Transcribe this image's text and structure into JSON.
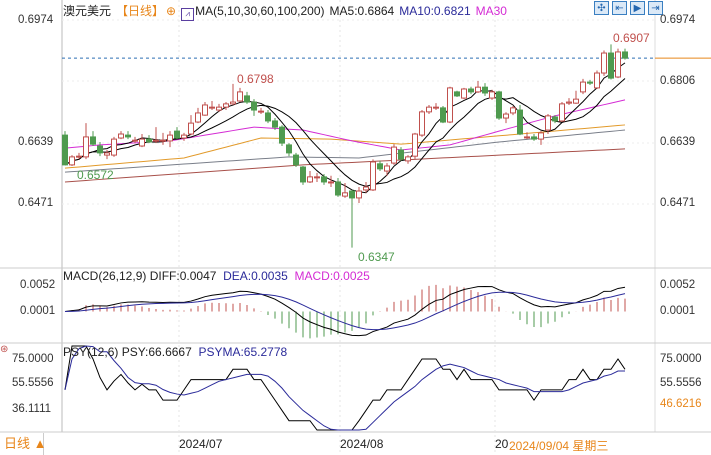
{
  "header": {
    "symbol": "澳元美元",
    "period": "【日线】",
    "indicator_icon": "chart-icon",
    "ma_label": "MA(5,10,30,60,100,200)",
    "ma5": "MA5:0.6864",
    "ma10": "MA10:0.6821",
    "ma30": "MA30"
  },
  "toolbar": [
    "crosshair-icon",
    "zoom-in-icon",
    "step-forward-icon",
    "jump-to-end-icon"
  ],
  "colors": {
    "up": "#c0504d",
    "down": "#4f9a4f",
    "ma5": "#000000",
    "ma10": "#000000",
    "ma30": "#d42bd4",
    "ma60": "#e29a2a",
    "ma100": "#7a7f8a",
    "ma200": "#a8504a",
    "accent": "#e8861a",
    "last_price_line": "#2c6fb3"
  },
  "chart_data": [
    {
      "type": "candlestick",
      "title": "澳元美元",
      "y_ticks": [
        "0.6974",
        "0.6806",
        "0.6639",
        "0.6471"
      ],
      "ylim": [
        0.6471,
        0.6974
      ],
      "x_ticks": [
        "2024/07",
        "2024/08",
        "20"
      ],
      "annotations": {
        "high": "0.6798",
        "period_high": "0.6907",
        "low": "0.6347",
        "left_low": "0.6572"
      },
      "candles_ohlc_note": "[open, close, high, low]",
      "candles": [
        [
          0.6657,
          0.6575,
          0.6668,
          0.6575
        ],
        [
          0.6575,
          0.6597,
          0.6602,
          0.6572
        ],
        [
          0.6597,
          0.6599,
          0.6608,
          0.6591
        ],
        [
          0.6597,
          0.6652,
          0.669,
          0.6591
        ],
        [
          0.6652,
          0.6632,
          0.6668,
          0.6627
        ],
        [
          0.6627,
          0.6608,
          0.6638,
          0.6599
        ],
        [
          0.6602,
          0.6608,
          0.6616,
          0.6591
        ],
        [
          0.6602,
          0.6646,
          0.6652,
          0.6597
        ],
        [
          0.6649,
          0.666,
          0.6668,
          0.6646
        ],
        [
          0.6657,
          0.6652,
          0.6668,
          0.6646
        ],
        [
          0.6641,
          0.6643,
          0.6652,
          0.6635
        ],
        [
          0.6627,
          0.6646,
          0.666,
          0.6624
        ],
        [
          0.6646,
          0.6638,
          0.6657,
          0.6635
        ],
        [
          0.6641,
          0.6643,
          0.6679,
          0.6635
        ],
        [
          0.6641,
          0.6643,
          0.6663,
          0.663
        ],
        [
          0.6641,
          0.6657,
          0.6668,
          0.6624
        ],
        [
          0.6668,
          0.6649,
          0.6679,
          0.6646
        ],
        [
          0.6649,
          0.6657,
          0.6663,
          0.6641
        ],
        [
          0.666,
          0.669,
          0.6712,
          0.6657
        ],
        [
          0.6693,
          0.6718,
          0.6732,
          0.669
        ],
        [
          0.6712,
          0.674,
          0.6748,
          0.671
        ],
        [
          0.6732,
          0.6734,
          0.6751,
          0.6726
        ],
        [
          0.6726,
          0.6734,
          0.6743,
          0.6721
        ],
        [
          0.6734,
          0.6743,
          0.6748,
          0.6726
        ],
        [
          0.6743,
          0.6748,
          0.6798,
          0.674
        ],
        [
          0.6751,
          0.6776,
          0.6787,
          0.6748
        ],
        [
          0.6765,
          0.6748,
          0.6776,
          0.6743
        ],
        [
          0.6748,
          0.6726,
          0.6756,
          0.671
        ],
        [
          0.6723,
          0.6723,
          0.6732,
          0.6715
        ],
        [
          0.6718,
          0.6696,
          0.6726,
          0.669
        ],
        [
          0.6696,
          0.6679,
          0.6704,
          0.6671
        ],
        [
          0.6679,
          0.6635,
          0.6684,
          0.6627
        ],
        [
          0.663,
          0.6608,
          0.6635,
          0.6599
        ],
        [
          0.6602,
          0.6575,
          0.6608,
          0.6569
        ],
        [
          0.6569,
          0.6528,
          0.6572,
          0.652
        ],
        [
          0.6528,
          0.6542,
          0.6558,
          0.6525
        ],
        [
          0.6542,
          0.6542,
          0.6553,
          0.6528
        ],
        [
          0.6542,
          0.6528,
          0.655,
          0.652
        ],
        [
          0.6528,
          0.6528,
          0.6545,
          0.6514
        ],
        [
          0.6528,
          0.6492,
          0.6539,
          0.6487
        ],
        [
          0.6489,
          0.6498,
          0.6525,
          0.6484
        ],
        [
          0.6503,
          0.6484,
          0.6506,
          0.6347
        ],
        [
          0.6484,
          0.6503,
          0.6514,
          0.647
        ],
        [
          0.6506,
          0.6514,
          0.6528,
          0.6498
        ],
        [
          0.6506,
          0.6583,
          0.659,
          0.6503
        ],
        [
          0.6578,
          0.6564,
          0.6586,
          0.6558
        ],
        [
          0.6558,
          0.6572,
          0.658,
          0.6545
        ],
        [
          0.658,
          0.6624,
          0.6632,
          0.6575
        ],
        [
          0.6616,
          0.6591,
          0.6624,
          0.6586
        ],
        [
          0.6586,
          0.6597,
          0.6602,
          0.6578
        ],
        [
          0.6599,
          0.666,
          0.6663,
          0.6591
        ],
        [
          0.6657,
          0.6721,
          0.6726,
          0.6652
        ],
        [
          0.6721,
          0.6734,
          0.674,
          0.6715
        ],
        [
          0.6734,
          0.6734,
          0.6745,
          0.6726
        ],
        [
          0.6732,
          0.6693,
          0.6737,
          0.669
        ],
        [
          0.6693,
          0.6787,
          0.679,
          0.669
        ],
        [
          0.6776,
          0.6765,
          0.6779,
          0.6762
        ],
        [
          0.6759,
          0.6784,
          0.6787,
          0.6756
        ],
        [
          0.6784,
          0.6776,
          0.679,
          0.677
        ],
        [
          0.6776,
          0.6789,
          0.6806,
          0.6773
        ],
        [
          0.6789,
          0.6773,
          0.68,
          0.6765
        ],
        [
          0.6759,
          0.6776,
          0.6782,
          0.6754
        ],
        [
          0.6776,
          0.6704,
          0.6779,
          0.6699
        ],
        [
          0.6704,
          0.6715,
          0.672,
          0.669
        ],
        [
          0.6718,
          0.6732,
          0.6737,
          0.6712
        ],
        [
          0.6726,
          0.666,
          0.674,
          0.6657
        ],
        [
          0.6652,
          0.6652,
          0.6665,
          0.6646
        ],
        [
          0.6652,
          0.6646,
          0.666,
          0.6641
        ],
        [
          0.6646,
          0.6663,
          0.6668,
          0.663
        ],
        [
          0.6671,
          0.671,
          0.6715,
          0.666
        ],
        [
          0.6707,
          0.6696,
          0.6712,
          0.669
        ],
        [
          0.6696,
          0.6743,
          0.6748,
          0.6693
        ],
        [
          0.6745,
          0.6748,
          0.6759,
          0.674
        ],
        [
          0.6745,
          0.6756,
          0.6779,
          0.6743
        ],
        [
          0.6776,
          0.6803,
          0.6812,
          0.677
        ],
        [
          0.6803,
          0.68,
          0.6809,
          0.6795
        ],
        [
          0.6787,
          0.6828,
          0.6835,
          0.6784
        ],
        [
          0.6828,
          0.6883,
          0.689,
          0.682
        ],
        [
          0.6883,
          0.6814,
          0.6907,
          0.681
        ],
        [
          0.6817,
          0.6886,
          0.6895,
          0.6814
        ],
        [
          0.6886,
          0.6869,
          0.6895,
          0.6865
        ]
      ],
      "last_price": 0.6869,
      "long_ma_anchors": {
        "ma30": [
          [
            0,
            0.6621
          ],
          [
            5,
            0.663
          ],
          [
            15,
            0.6641
          ],
          [
            27,
            0.6679
          ],
          [
            34,
            0.6671
          ],
          [
            41,
            0.6641
          ],
          [
            48,
            0.6616
          ],
          [
            55,
            0.663
          ],
          [
            62,
            0.6668
          ],
          [
            70,
            0.671
          ],
          [
            80,
            0.6754
          ]
        ],
        "ma60": [
          [
            0,
            0.6566
          ],
          [
            17,
            0.6594
          ],
          [
            28,
            0.6649
          ],
          [
            38,
            0.6646
          ],
          [
            48,
            0.6632
          ],
          [
            65,
            0.666
          ],
          [
            80,
            0.6685
          ]
        ],
        "ma100": [
          [
            0,
            0.6555
          ],
          [
            32,
            0.6597
          ],
          [
            42,
            0.6594
          ],
          [
            62,
            0.6638
          ],
          [
            80,
            0.6671
          ]
        ],
        "ma200": [
          [
            0,
            0.6528
          ],
          [
            34,
            0.6575
          ],
          [
            80,
            0.6619
          ]
        ]
      }
    },
    {
      "type": "macd",
      "title": "MACD(26,12,9)",
      "diff": "DIFF:0.0047",
      "dea": "DEA:0.0035",
      "macd": "MACD:0.0025",
      "y_ticks": [
        "0.0052",
        "0.0001"
      ]
    },
    {
      "type": "psy",
      "title": "PSY(12,6)",
      "psy": "PSY:66.6667",
      "psyma": "PSYMA:65.2778",
      "y_ticks": [
        "75.0000",
        "55.5556",
        "36.1111"
      ],
      "right_marker": "46.6216"
    }
  ],
  "footer": {
    "period_button": "日线 ▲",
    "cursor_date": "2024/09/04 星期三"
  }
}
